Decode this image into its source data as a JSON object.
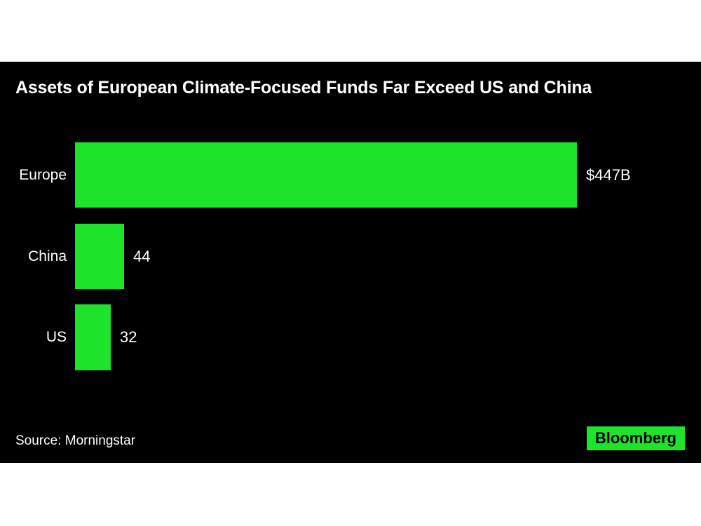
{
  "title": "Assets of European Climate-Focused Funds Far Exceed US and China",
  "source_label": "Source: Morningstar",
  "logo_text": "Bloomberg",
  "colors": {
    "page_background": "#ffffff",
    "panel_background": "#000000",
    "text": "#ffffff",
    "bar_green": "#1de32b",
    "logo_background": "#1de32b",
    "logo_text": "#000000"
  },
  "chart_data": {
    "type": "bar",
    "orientation": "horizontal",
    "title": "Assets of European Climate-Focused Funds Far Exceed US and China",
    "categories": [
      "Europe",
      "China",
      "US"
    ],
    "values": [
      447,
      44,
      32
    ],
    "value_labels": [
      "$447B",
      "44",
      "32"
    ],
    "value_unit": "$B",
    "bar_color": "#1de32b",
    "grid": false,
    "legend": false
  }
}
